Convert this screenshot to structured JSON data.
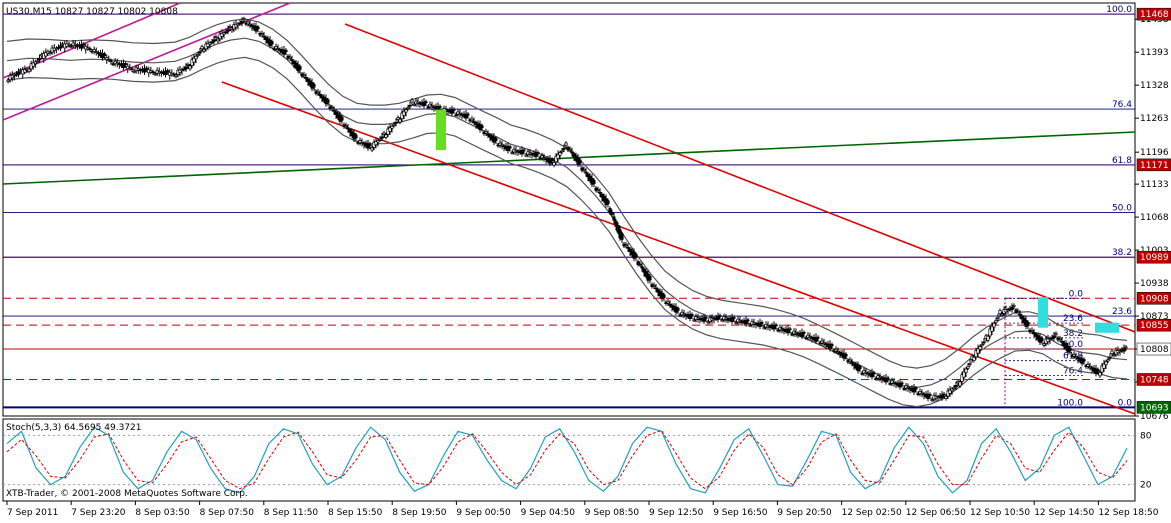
{
  "window": {
    "symbol_header": "US30,M15  10827 10827 10802 10808",
    "indicator_header": "Stoch(5,3,3) 64.5695 49.3721",
    "copyright": "XTB-Trader, © 2001-2008 MetaQuotes Software Corp."
  },
  "colors": {
    "candle": "#000000",
    "bollinger": "#555555",
    "channel": "#e00000",
    "trend_green": "#006400",
    "pink_channel": "#c0189a",
    "fib_line": "#000080",
    "fib_label": "#000080",
    "level_dashed": "#c00000",
    "stoch_main": "#20a0c0",
    "stoch_signal": "#e00000",
    "highlight_green": "#66dd22",
    "highlight_cyan": "#33dddd"
  },
  "chart_data": [
    {
      "type": "candlestick",
      "symbol": "US30",
      "timeframe": "M15",
      "ohlc_last": {
        "open": 10827,
        "high": 10827,
        "low": 10802,
        "close": 10808
      },
      "y_axis_ticks": [
        11458,
        11393,
        11328,
        11263,
        11196,
        11133,
        11068,
        11003,
        10938,
        10873,
        10808,
        10743,
        10676
      ],
      "ylim": [
        10676,
        11490
      ],
      "x_ticks": [
        "7 Sep 2011",
        "7 Sep 23:20",
        "8 Sep 03:50",
        "8 Sep 07:50",
        "8 Sep 11:50",
        "8 Sep 15:50",
        "8 Sep 19:50",
        "9 Sep 00:50",
        "9 Sep 04:50",
        "9 Sep 08:50",
        "9 Sep 12:50",
        "9 Sep 16:50",
        "9 Sep 20:50",
        "12 Sep 02:50",
        "12 Sep 06:50",
        "12 Sep 10:50",
        "12 Sep 14:50",
        "12 Sep 18:50"
      ],
      "price_points": [
        [
          0,
          11340
        ],
        [
          3,
          11360
        ],
        [
          6,
          11395
        ],
        [
          9,
          11410
        ],
        [
          12,
          11400
        ],
        [
          15,
          11375
        ],
        [
          18,
          11360
        ],
        [
          21,
          11355
        ],
        [
          24,
          11350
        ],
        [
          26,
          11365
        ],
        [
          28,
          11400
        ],
        [
          30,
          11420
        ],
        [
          32,
          11440
        ],
        [
          34,
          11455
        ],
        [
          36,
          11435
        ],
        [
          38,
          11405
        ],
        [
          40,
          11390
        ],
        [
          42,
          11355
        ],
        [
          44,
          11320
        ],
        [
          46,
          11290
        ],
        [
          48,
          11255
        ],
        [
          50,
          11220
        ],
        [
          52,
          11205
        ],
        [
          54,
          11230
        ],
        [
          56,
          11260
        ],
        [
          58,
          11295
        ],
        [
          60,
          11290
        ],
        [
          62,
          11280
        ],
        [
          64,
          11275
        ],
        [
          66,
          11265
        ],
        [
          68,
          11240
        ],
        [
          70,
          11215
        ],
        [
          72,
          11200
        ],
        [
          74,
          11195
        ],
        [
          76,
          11190
        ],
        [
          78,
          11175
        ],
        [
          80,
          11210
        ],
        [
          82,
          11170
        ],
        [
          84,
          11130
        ],
        [
          86,
          11090
        ],
        [
          88,
          11020
        ],
        [
          90,
          10985
        ],
        [
          92,
          10940
        ],
        [
          94,
          10905
        ],
        [
          96,
          10880
        ],
        [
          98,
          10870
        ],
        [
          100,
          10865
        ],
        [
          102,
          10870
        ],
        [
          104,
          10865
        ],
        [
          106,
          10860
        ],
        [
          108,
          10855
        ],
        [
          110,
          10850
        ],
        [
          112,
          10842
        ],
        [
          114,
          10835
        ],
        [
          116,
          10825
        ],
        [
          118,
          10810
        ],
        [
          120,
          10790
        ],
        [
          122,
          10765
        ],
        [
          124,
          10755
        ],
        [
          126,
          10745
        ],
        [
          128,
          10735
        ],
        [
          130,
          10725
        ],
        [
          132,
          10712
        ],
        [
          134,
          10715
        ],
        [
          136,
          10740
        ],
        [
          138,
          10790
        ],
        [
          140,
          10830
        ],
        [
          142,
          10880
        ],
        [
          144,
          10890
        ],
        [
          146,
          10850
        ],
        [
          148,
          10820
        ],
        [
          150,
          10835
        ],
        [
          152,
          10800
        ],
        [
          154,
          10780
        ],
        [
          156,
          10760
        ],
        [
          158,
          10800
        ],
        [
          160,
          10808
        ]
      ],
      "levels_solid_right": [
        {
          "label": "11468",
          "price": 11468
        },
        {
          "label": "11171",
          "price": 11171
        },
        {
          "label": "10989",
          "price": 10989
        },
        {
          "label": "10808",
          "price": 10808
        },
        {
          "label": "10693",
          "price": 10693
        }
      ],
      "levels_dashed_right": [
        {
          "label": "10908",
          "price": 10908
        },
        {
          "label": "10855",
          "price": 10855
        },
        {
          "label": "10748",
          "price": 10748
        }
      ],
      "fibonacci_major": [
        {
          "label": "100.0",
          "price": 11468
        },
        {
          "label": "76.4",
          "price": 11281
        },
        {
          "label": "61.8",
          "price": 11171
        },
        {
          "label": "50.0",
          "price": 11077
        },
        {
          "label": "38.2",
          "price": 10989
        },
        {
          "label": "23.6",
          "price": 10873
        },
        {
          "label": "0.0",
          "price": 10693
        }
      ],
      "fibonacci_minor": [
        {
          "label": "0.0",
          "price": 10908
        },
        {
          "label": "23.6",
          "price": 10859
        },
        {
          "label": "38.2",
          "price": 10830
        },
        {
          "label": "50.0",
          "price": 10808
        },
        {
          "label": "61.8",
          "price": 10785
        },
        {
          "label": "76.4",
          "price": 10756
        },
        {
          "label": "100.0",
          "price": 10693
        }
      ]
    },
    {
      "type": "line",
      "indicator": "Stoch(5,3,3)",
      "values_last": {
        "main": 64.5695,
        "signal": 49.3721
      },
      "y_axis_ticks": [
        80,
        20
      ],
      "ylim": [
        0,
        100
      ],
      "main_series": [
        70,
        85,
        40,
        20,
        30,
        65,
        90,
        80,
        35,
        15,
        25,
        60,
        85,
        75,
        40,
        15,
        10,
        30,
        70,
        88,
        82,
        45,
        20,
        30,
        65,
        90,
        75,
        35,
        12,
        20,
        55,
        85,
        80,
        50,
        25,
        15,
        40,
        78,
        88,
        60,
        25,
        12,
        30,
        70,
        90,
        85,
        45,
        15,
        10,
        40,
        75,
        88,
        55,
        20,
        18,
        50,
        85,
        80,
        35,
        15,
        25,
        65,
        90,
        70,
        30,
        10,
        25,
        70,
        88,
        60,
        25,
        40,
        80,
        90,
        55,
        20,
        30,
        64.57
      ],
      "signal_series": [
        60,
        75,
        55,
        30,
        28,
        50,
        78,
        82,
        50,
        25,
        22,
        45,
        72,
        78,
        52,
        25,
        15,
        22,
        52,
        78,
        84,
        60,
        32,
        28,
        50,
        78,
        80,
        50,
        22,
        20,
        42,
        72,
        82,
        60,
        35,
        20,
        32,
        62,
        82,
        70,
        38,
        20,
        25,
        55,
        80,
        86,
        58,
        28,
        15,
        30,
        62,
        82,
        65,
        32,
        20,
        40,
        72,
        82,
        50,
        25,
        22,
        50,
        80,
        78,
        45,
        20,
        20,
        52,
        80,
        70,
        40,
        35,
        62,
        84,
        65,
        35,
        28,
        49.37
      ]
    }
  ]
}
